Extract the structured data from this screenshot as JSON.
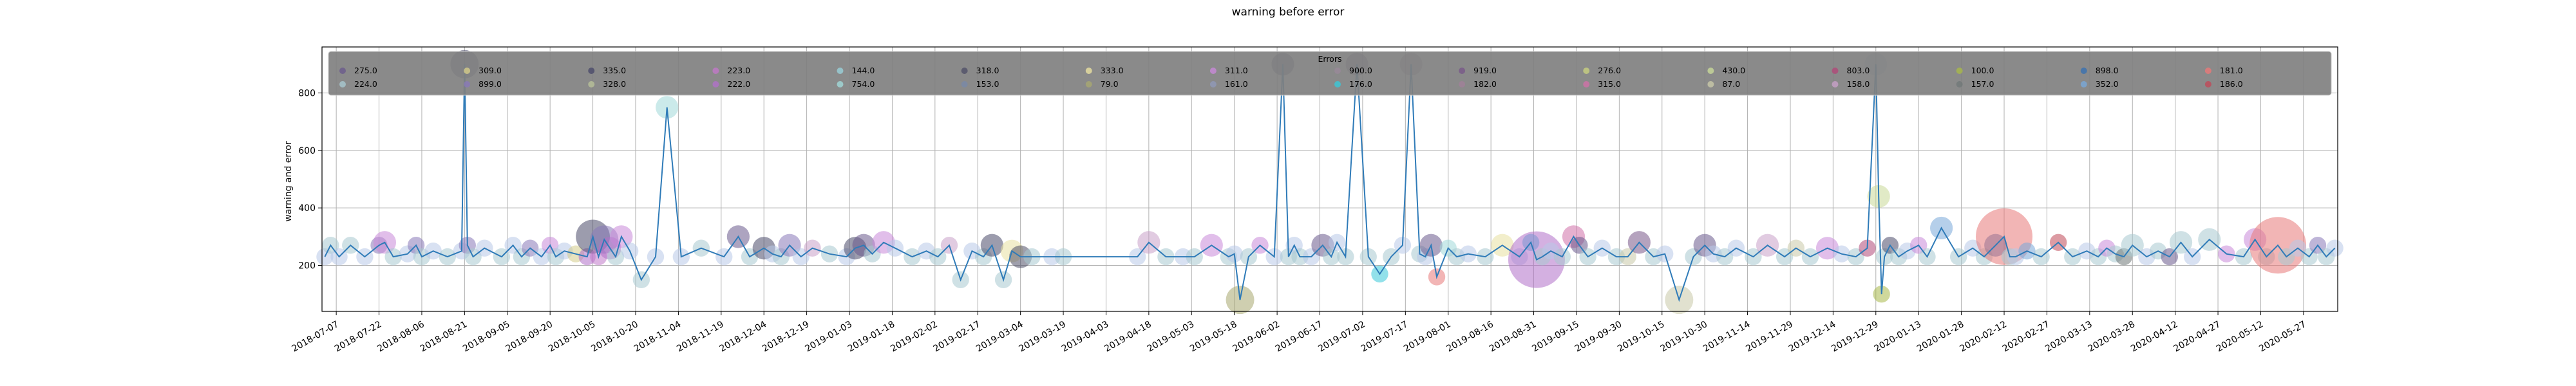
{
  "chart_data": {
    "type": "scatter",
    "title": "warning before error",
    "xlabel": "",
    "ylabel": "warning and error",
    "ylim": [
      40,
      960
    ],
    "xlim": [
      "2018-07-02",
      "2020-06-08"
    ],
    "y_ticks": [
      200,
      400,
      600,
      800
    ],
    "x_ticks": [
      "2018-07-07",
      "2018-07-22",
      "2018-08-06",
      "2018-08-21",
      "2018-09-05",
      "2018-09-20",
      "2018-10-05",
      "2018-10-20",
      "2018-11-04",
      "2018-11-19",
      "2018-12-04",
      "2018-12-19",
      "2019-01-03",
      "2019-01-18",
      "2019-02-02",
      "2019-02-17",
      "2019-03-04",
      "2019-03-19",
      "2019-04-03",
      "2019-04-18",
      "2019-05-03",
      "2019-05-18",
      "2019-06-02",
      "2019-06-17",
      "2019-07-02",
      "2019-07-17",
      "2019-08-01",
      "2019-08-16",
      "2019-08-31",
      "2019-09-15",
      "2019-09-30",
      "2019-10-15",
      "2019-10-30",
      "2019-11-14",
      "2019-11-29",
      "2019-12-14",
      "2019-12-29",
      "2020-01-13",
      "2020-01-28",
      "2020-02-12",
      "2020-02-27",
      "2020-03-13",
      "2020-03-28",
      "2020-04-12",
      "2020-04-27",
      "2020-05-12",
      "2020-05-27"
    ],
    "grid": true,
    "legend": {
      "title": "Errors",
      "placement": "top",
      "entries": [
        {
          "label": "275.0",
          "color": "#6a5a8c"
        },
        {
          "label": "224.0",
          "color": "#a8c8d0"
        },
        {
          "label": "309.0",
          "color": "#d4cc8a"
        },
        {
          "label": "899.0",
          "color": "#8878b8"
        },
        {
          "label": "335.0",
          "color": "#4a4a6a"
        },
        {
          "label": "328.0",
          "color": "#b8c098"
        },
        {
          "label": "223.0",
          "color": "#c078c8"
        },
        {
          "label": "222.0",
          "color": "#b070c8"
        },
        {
          "label": "144.0",
          "color": "#98d0d8"
        },
        {
          "label": "754.0",
          "color": "#a0d8d8"
        },
        {
          "label": "318.0",
          "color": "#505068"
        },
        {
          "label": "153.0",
          "color": "#7888a8"
        },
        {
          "label": "333.0",
          "color": "#e8e0a0"
        },
        {
          "label": "79.0",
          "color": "#a8a870"
        },
        {
          "label": "311.0",
          "color": "#c888d8"
        },
        {
          "label": "161.0",
          "color": "#9098b8"
        },
        {
          "label": "900.0",
          "color": "#988898"
        },
        {
          "label": "176.0",
          "color": "#38c8d8"
        },
        {
          "label": "919.0",
          "color": "#785888"
        },
        {
          "label": "182.0",
          "color": "#a08098"
        },
        {
          "label": "276.0",
          "color": "#c8d080"
        },
        {
          "label": "315.0",
          "color": "#d070a8"
        },
        {
          "label": "430.0",
          "color": "#c8d898"
        },
        {
          "label": "87.0",
          "color": "#c8c8a8"
        },
        {
          "label": "803.0",
          "color": "#b04878"
        },
        {
          "label": "158.0",
          "color": "#c8a0c8"
        },
        {
          "label": "100.0",
          "color": "#a8b848"
        },
        {
          "label": "157.0",
          "color": "#707878"
        },
        {
          "label": "898.0",
          "color": "#3870b0"
        },
        {
          "label": "352.0",
          "color": "#78a8d8"
        },
        {
          "label": "181.0",
          "color": "#e87878"
        },
        {
          "label": "186.0",
          "color": "#c04858"
        }
      ]
    },
    "series": [
      {
        "x": [
          "2018-07-03",
          "2018-07-05",
          "2018-07-08",
          "2018-07-12",
          "2018-07-17",
          "2018-07-22",
          "2018-07-24",
          "2018-07-27",
          "2018-08-01",
          "2018-08-04",
          "2018-08-06",
          "2018-08-10",
          "2018-08-15",
          "2018-08-20",
          "2018-08-21",
          "2018-08-22",
          "2018-08-24",
          "2018-08-28",
          "2018-09-03",
          "2018-09-07",
          "2018-09-10",
          "2018-09-13",
          "2018-09-17",
          "2018-09-20",
          "2018-09-22",
          "2018-09-25",
          "2018-09-29",
          "2018-10-03",
          "2018-10-05",
          "2018-10-07",
          "2018-10-09",
          "2018-10-11",
          "2018-10-13",
          "2018-10-15",
          "2018-10-18",
          "2018-10-22",
          "2018-10-27",
          "2018-10-31",
          "2018-11-05",
          "2018-11-12",
          "2018-11-20",
          "2018-11-25",
          "2018-11-29",
          "2018-12-04",
          "2018-12-07",
          "2018-12-10",
          "2018-12-13",
          "2018-12-17",
          "2018-12-21",
          "2018-12-27",
          "2019-01-02",
          "2019-01-05",
          "2019-01-08",
          "2019-01-11",
          "2019-01-15",
          "2019-01-19",
          "2019-01-25",
          "2019-01-30",
          "2019-02-03",
          "2019-02-07",
          "2019-02-11",
          "2019-02-15",
          "2019-02-19",
          "2019-02-22",
          "2019-02-26",
          "2019-03-01",
          "2019-03-04",
          "2019-03-08",
          "2019-03-15",
          "2019-03-19",
          "2019-04-14",
          "2019-04-18",
          "2019-04-24",
          "2019-04-30",
          "2019-05-04",
          "2019-05-10",
          "2019-05-16",
          "2019-05-18",
          "2019-05-20",
          "2019-05-23",
          "2019-05-27",
          "2019-06-01",
          "2019-06-04",
          "2019-06-06",
          "2019-06-08",
          "2019-06-10",
          "2019-06-14",
          "2019-06-18",
          "2019-06-21",
          "2019-06-23",
          "2019-06-26",
          "2019-06-30",
          "2019-07-04",
          "2019-07-08",
          "2019-07-12",
          "2019-07-16",
          "2019-07-19",
          "2019-07-22",
          "2019-07-24",
          "2019-07-26",
          "2019-07-28",
          "2019-08-01",
          "2019-08-04",
          "2019-08-08",
          "2019-08-14",
          "2019-08-20",
          "2019-08-26",
          "2019-08-30",
          "2019-09-01",
          "2019-09-03",
          "2019-09-06",
          "2019-09-10",
          "2019-09-14",
          "2019-09-16",
          "2019-09-19",
          "2019-09-24",
          "2019-09-29",
          "2019-10-03",
          "2019-10-07",
          "2019-10-12",
          "2019-10-16",
          "2019-10-21",
          "2019-10-26",
          "2019-10-30",
          "2019-11-02",
          "2019-11-06",
          "2019-11-10",
          "2019-11-16",
          "2019-11-21",
          "2019-11-27",
          "2019-12-01",
          "2019-12-06",
          "2019-12-12",
          "2019-12-17",
          "2019-12-22",
          "2019-12-26",
          "2019-12-29",
          "2019-12-30",
          "2019-12-31",
          "2020-01-01",
          "2020-01-03",
          "2020-01-06",
          "2020-01-09",
          "2020-01-13",
          "2020-01-16",
          "2020-01-21",
          "2020-01-27",
          "2020-02-01",
          "2020-02-05",
          "2020-02-09",
          "2020-02-12",
          "2020-02-14",
          "2020-02-16",
          "2020-02-20",
          "2020-02-25",
          "2020-03-02",
          "2020-03-07",
          "2020-03-12",
          "2020-03-16",
          "2020-03-19",
          "2020-03-22",
          "2020-03-25",
          "2020-03-28",
          "2020-04-02",
          "2020-04-06",
          "2020-04-10",
          "2020-04-14",
          "2020-04-18",
          "2020-04-24",
          "2020-04-30",
          "2020-05-06",
          "2020-05-10",
          "2020-05-14",
          "2020-05-18",
          "2020-05-21",
          "2020-05-25",
          "2020-05-29",
          "2020-06-01",
          "2020-06-04",
          "2020-06-07"
        ],
        "y": [
          230,
          270,
          230,
          270,
          230,
          270,
          280,
          230,
          240,
          270,
          230,
          250,
          230,
          250,
          900,
          270,
          230,
          260,
          230,
          270,
          230,
          260,
          230,
          270,
          230,
          250,
          240,
          230,
          300,
          230,
          290,
          260,
          230,
          300,
          250,
          150,
          230,
          750,
          230,
          260,
          230,
          300,
          230,
          260,
          240,
          230,
          270,
          230,
          260,
          240,
          230,
          260,
          270,
          240,
          280,
          260,
          230,
          250,
          230,
          270,
          150,
          250,
          230,
          270,
          150,
          250,
          230,
          230,
          230,
          230,
          230,
          280,
          230,
          230,
          230,
          270,
          230,
          240,
          80,
          230,
          270,
          230,
          900,
          230,
          270,
          230,
          230,
          270,
          230,
          280,
          230,
          900,
          230,
          170,
          230,
          270,
          900,
          240,
          230,
          270,
          160,
          260,
          230,
          240,
          230,
          270,
          230,
          280,
          220,
          230,
          250,
          230,
          300,
          270,
          230,
          260,
          230,
          230,
          280,
          230,
          240,
          80,
          230,
          270,
          240,
          230,
          260,
          230,
          270,
          230,
          260,
          230,
          260,
          240,
          230,
          260,
          900,
          440,
          100,
          230,
          270,
          230,
          250,
          270,
          230,
          330,
          230,
          260,
          230,
          270,
          300,
          230,
          230,
          250,
          230,
          280,
          230,
          250,
          230,
          260,
          240,
          230,
          270,
          230,
          250,
          230,
          280,
          230,
          290,
          240,
          230,
          290,
          230,
          270,
          230,
          260,
          230,
          270,
          230,
          260
        ],
        "sizes": [
          6,
          6,
          6,
          6,
          6,
          6,
          8,
          6,
          6,
          6,
          6,
          6,
          6,
          6,
          10,
          6,
          6,
          6,
          6,
          6,
          6,
          6,
          6,
          6,
          6,
          6,
          6,
          6,
          12,
          6,
          10,
          8,
          6,
          8,
          6,
          6,
          6,
          8,
          6,
          6,
          6,
          8,
          6,
          8,
          6,
          6,
          8,
          6,
          6,
          6,
          6,
          8,
          8,
          6,
          8,
          6,
          6,
          6,
          6,
          6,
          6,
          6,
          6,
          8,
          6,
          8,
          8,
          6,
          6,
          6,
          6,
          8,
          6,
          6,
          6,
          8,
          6,
          6,
          10,
          6,
          6,
          6,
          8,
          6,
          6,
          6,
          6,
          8,
          6,
          6,
          6,
          8,
          6,
          6,
          6,
          6,
          8,
          6,
          6,
          8,
          6,
          6,
          6,
          6,
          6,
          8,
          6,
          6,
          20,
          6,
          6,
          6,
          8,
          6,
          6,
          6,
          6,
          6,
          8,
          6,
          6,
          10,
          6,
          8,
          6,
          6,
          6,
          6,
          8,
          6,
          6,
          6,
          8,
          6,
          6,
          6,
          8,
          8,
          6,
          6,
          6,
          6,
          6,
          6,
          6,
          8,
          6,
          6,
          6,
          8,
          20,
          6,
          6,
          6,
          6,
          6,
          6,
          6,
          6,
          6,
          6,
          6,
          8,
          6,
          6,
          6,
          8,
          6,
          8,
          6,
          6,
          8,
          6,
          20,
          6,
          6,
          6,
          6,
          6,
          6
        ],
        "colors": [
          "#b8c8e8",
          "#a8c8d0",
          "#b8c8e8",
          "#a8c8d0",
          "#b8c8e8",
          "#8878b8",
          "#c888d8",
          "#a8c8d0",
          "#b8c8e8",
          "#8878b8",
          "#a8c8d0",
          "#b8c8e8",
          "#a8c8d0",
          "#b8c8e8",
          "#4a4a6a",
          "#8878b8",
          "#a8c8d0",
          "#b8c8e8",
          "#a8c8d0",
          "#b8c8e8",
          "#a8c8d0",
          "#8878b8",
          "#b8c8e8",
          "#c888d8",
          "#a8c8d0",
          "#b8c8e8",
          "#d4cc8a",
          "#b070c8",
          "#4a4a6a",
          "#c078c8",
          "#8878b8",
          "#b070c8",
          "#a8c8d0",
          "#c888d8",
          "#b8c8e8",
          "#a8c8d0",
          "#b8c8e8",
          "#a0d8d8",
          "#b8c8e8",
          "#a8c8d0",
          "#b8c8e8",
          "#6a5a8c",
          "#a8c8d0",
          "#4a4a6a",
          "#b8c8e8",
          "#a8c8d0",
          "#8878b8",
          "#b8c8e8",
          "#c8a0c8",
          "#a8c8d0",
          "#b8c8e8",
          "#4a4a6a",
          "#6a5a8c",
          "#a8c8d0",
          "#c888d8",
          "#b8c8e8",
          "#a8c8d0",
          "#b8c8e8",
          "#a8c8d0",
          "#c8a0c8",
          "#a8c8d0",
          "#b8c8e8",
          "#a8c8d0",
          "#4a4a6a",
          "#a8c8d0",
          "#e8e0a0",
          "#505068",
          "#a8c8d0",
          "#b8c8e8",
          "#a8c8d0",
          "#b8c8e8",
          "#c8a0c8",
          "#a8c8d0",
          "#b8c8e8",
          "#a8c8d0",
          "#c888d8",
          "#a8c8d0",
          "#b8c8e8",
          "#a8a870",
          "#a8c8d0",
          "#c888d8",
          "#b8c8e8",
          "#4a4a6a",
          "#a8c8d0",
          "#b8c8e8",
          "#a8c8d0",
          "#b8c8e8",
          "#6a5a8c",
          "#a8c8d0",
          "#b8c8e8",
          "#a8c8d0",
          "#785888",
          "#a8c8d0",
          "#38c8d8",
          "#a8c8d0",
          "#b8c8e8",
          "#988898",
          "#a8c8d0",
          "#b8c8e8",
          "#6a5a8c",
          "#e87878",
          "#a0d8d8",
          "#a8c8d0",
          "#b8c8e8",
          "#a8c8d0",
          "#e8e0a0",
          "#b8c8e8",
          "#38c8d8",
          "#b070c8",
          "#a8c8d0",
          "#b8c8e8",
          "#a8c8d0",
          "#d070a8",
          "#6a5a8c",
          "#a8c8d0",
          "#b8c8e8",
          "#a8c8d0",
          "#c8c8a8",
          "#785888",
          "#a8c8d0",
          "#b8c8e8",
          "#c8c8a8",
          "#a8c8d0",
          "#6a5a8c",
          "#b8c8e8",
          "#a8c8d0",
          "#b8c8e8",
          "#a8c8d0",
          "#c8a0c8",
          "#a8c8d0",
          "#c8c8a8",
          "#a8c8d0",
          "#c888d8",
          "#b8c8e8",
          "#a8c8d0",
          "#b04878",
          "#b8c8e8",
          "#c8d898",
          "#a8b848",
          "#a8c8d0",
          "#4a4a6a",
          "#a8c8d0",
          "#b8c8e8",
          "#c888d8",
          "#a8c8d0",
          "#78a8d8",
          "#a8c8d0",
          "#b8c8e8",
          "#a8c8d0",
          "#3870b0",
          "#e87878",
          "#a8c8d0",
          "#b8c8e8",
          "#78a8d8",
          "#a8c8d0",
          "#c04858",
          "#a8c8d0",
          "#b8c8e8",
          "#a8c8d0",
          "#c888d8",
          "#a8c8d0",
          "#707878",
          "#a8c8d0",
          "#b8c8e8",
          "#a8c8d0",
          "#6a5a8c",
          "#a8c8d0",
          "#b8c8e8",
          "#a8c8d0",
          "#c888d8",
          "#a8c8d0",
          "#c888d8",
          "#a8c8d0",
          "#e87878",
          "#a8c8d0",
          "#b8c8e8",
          "#a8c8d0",
          "#8878b8",
          "#a8c8d0",
          "#b8c8e8"
        ]
      }
    ],
    "line_color": "#2f7bb8"
  }
}
